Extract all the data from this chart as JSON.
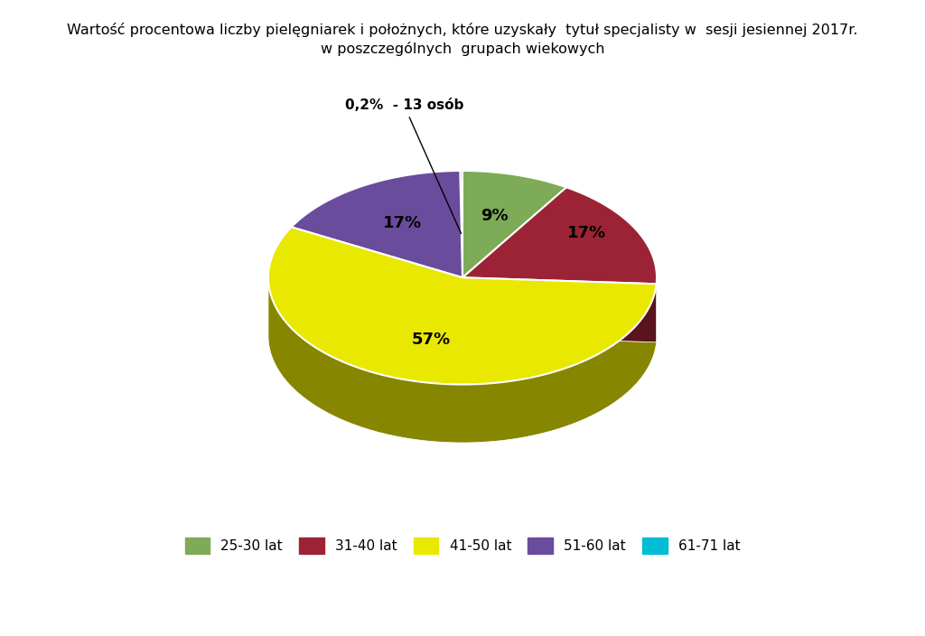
{
  "title_line1": "Wartość procentowa liczby pielęgniarek i położnych, które uzyskały  tytuł specjalisty w  sesji jesiennej 2017r.",
  "title_line2": "w poszczególnych  grupach wiekowych",
  "slices": [
    9,
    17,
    57,
    17,
    0.2
  ],
  "labels": [
    "25-30 lat",
    "31-40 lat",
    "41-50 lat",
    "51-60 lat",
    "61-71 lat"
  ],
  "colors": [
    "#7dab57",
    "#9b2335",
    "#e8e800",
    "#6a4c9c",
    "#00bcd4"
  ],
  "pct_labels": [
    "9%",
    "17%",
    "57%",
    "17%",
    "0,2%"
  ],
  "background_color": "#ffffff"
}
